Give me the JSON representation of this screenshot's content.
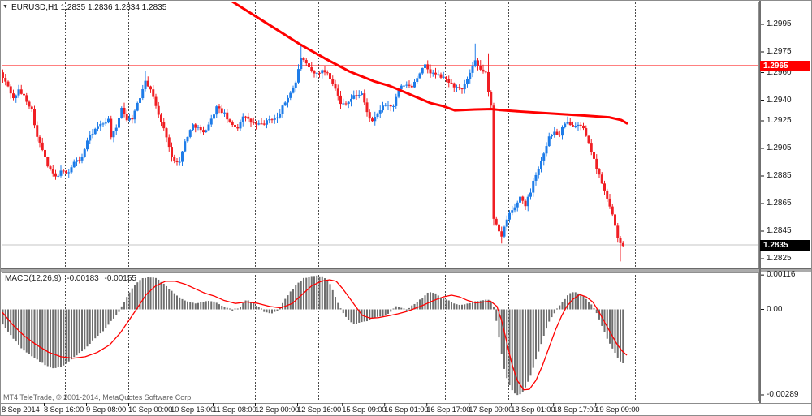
{
  "header": {
    "symbol_label": "EURUSD,H1",
    "quote_label": "1.2835 1.2836 1.2834 1.2835"
  },
  "icons": {
    "dropdown": "▼"
  },
  "footer": {
    "copyright": "MT4 TeleTrade, © 2001-2014, MetaQuotes Software Corp."
  },
  "colors": {
    "bull": "#1e7ce8",
    "bear": "#f01e23",
    "ma_line": "#ff0000",
    "signal_line": "#ff0000",
    "histogram": "#6e6e6e",
    "separator_dots": "#4a4a4a",
    "frame": "#8c8c8c",
    "hline": "#ff0000",
    "current_line": "#c4c4c4",
    "tag_red_bg": "#ff0000",
    "tag_black_bg": "#000000",
    "axis_text": "#1a1a1a"
  },
  "chart_data": {
    "type": "candlestick",
    "symbol": "EURUSD",
    "timeframe": "H1",
    "last_quote": {
      "open": "1.2835",
      "high": "1.2836",
      "low": "1.2834",
      "close": "1.2835"
    },
    "price_axis": {
      "ticks": [
        "1.2995",
        "1.2975",
        "1.2960",
        "1.2940",
        "1.2925",
        "1.2905",
        "1.2885",
        "1.2865",
        "1.2845",
        "1.2825"
      ],
      "level_tag": "1.2965",
      "current_tag": "1.2835",
      "ylim": [
        1.2823,
        1.2997
      ]
    },
    "hline_level": 1.2965,
    "current_price": 1.2835,
    "time_axis": {
      "labels": [
        {
          "label": "8 Sep 2014",
          "bar": 0
        },
        {
          "label": "8 Sep 16:00",
          "bar": 16
        },
        {
          "label": "9 Sep 08:00",
          "bar": 32
        },
        {
          "label": "10 Sep 00:00",
          "bar": 48
        },
        {
          "label": "10 Sep 16:00",
          "bar": 64
        },
        {
          "label": "11 Sep 08:00",
          "bar": 80
        },
        {
          "label": "12 Sep 00:00",
          "bar": 96
        },
        {
          "label": "12 Sep 16:00",
          "bar": 112
        },
        {
          "label": "15 Sep 09:00",
          "bar": 129
        },
        {
          "label": "16 Sep 01:00",
          "bar": 145
        },
        {
          "label": "16 Sep 17:00",
          "bar": 161
        },
        {
          "label": "17 Sep 09:00",
          "bar": 177
        },
        {
          "label": "18 Sep 01:00",
          "bar": 193
        },
        {
          "label": "18 Sep 17:00",
          "bar": 209
        },
        {
          "label": "19 Sep 09:00",
          "bar": 225
        }
      ],
      "separator_bars": [
        24,
        48,
        72,
        96,
        120,
        144,
        168,
        192,
        216,
        240
      ]
    },
    "bars": {
      "count": 236,
      "close_anchors": [
        [
          0,
          1.2956
        ],
        [
          2,
          1.295
        ],
        [
          4,
          1.2941
        ],
        [
          6,
          1.2947
        ],
        [
          8,
          1.2943
        ],
        [
          11,
          1.2933
        ],
        [
          13,
          1.2913
        ],
        [
          15,
          1.2904
        ],
        [
          17,
          1.2892
        ],
        [
          20,
          1.2884
        ],
        [
          22,
          1.2888
        ],
        [
          25,
          1.2888
        ],
        [
          27,
          1.2895
        ],
        [
          30,
          1.2898
        ],
        [
          32,
          1.2911
        ],
        [
          35,
          1.2919
        ],
        [
          37,
          1.2922
        ],
        [
          40,
          1.2926
        ],
        [
          41,
          1.2914
        ],
        [
          43,
          1.2919
        ],
        [
          45,
          1.2935
        ],
        [
          47,
          1.2926
        ],
        [
          49,
          1.2927
        ],
        [
          52,
          1.2942
        ],
        [
          54,
          1.2955
        ],
        [
          57,
          1.2943
        ],
        [
          59,
          1.2929
        ],
        [
          62,
          1.2914
        ],
        [
          64,
          1.2898
        ],
        [
          67,
          1.2895
        ],
        [
          69,
          1.291
        ],
        [
          72,
          1.2922
        ],
        [
          74,
          1.292
        ],
        [
          76,
          1.2916
        ],
        [
          79,
          1.2926
        ],
        [
          81,
          1.2935
        ],
        [
          84,
          1.293
        ],
        [
          86,
          1.2923
        ],
        [
          89,
          1.292
        ],
        [
          91,
          1.2929
        ],
        [
          94,
          1.2924
        ],
        [
          96,
          1.2922
        ],
        [
          99,
          1.2923
        ],
        [
          101,
          1.2926
        ],
        [
          104,
          1.2927
        ],
        [
          106,
          1.2935
        ],
        [
          108,
          1.2942
        ],
        [
          111,
          1.2953
        ],
        [
          113,
          1.2971
        ],
        [
          116,
          1.2963
        ],
        [
          118,
          1.2959
        ],
        [
          121,
          1.2961
        ],
        [
          123,
          1.296
        ],
        [
          126,
          1.2949
        ],
        [
          128,
          1.2937
        ],
        [
          131,
          1.2939
        ],
        [
          133,
          1.2943
        ],
        [
          136,
          1.2945
        ],
        [
          138,
          1.2931
        ],
        [
          140,
          1.2924
        ],
        [
          143,
          1.2933
        ],
        [
          145,
          1.2937
        ],
        [
          148,
          1.2935
        ],
        [
          150,
          1.2948
        ],
        [
          152,
          1.2951
        ],
        [
          155,
          1.295
        ],
        [
          158,
          1.296
        ],
        [
          160,
          1.2965
        ],
        [
          162,
          1.296
        ],
        [
          165,
          1.2958
        ],
        [
          168,
          1.2955
        ],
        [
          171,
          1.295
        ],
        [
          174,
          1.2947
        ],
        [
          176,
          1.2955
        ],
        [
          179,
          1.2968
        ],
        [
          181,
          1.2962
        ],
        [
          183,
          1.296
        ],
        [
          184,
          1.2946
        ],
        [
          185,
          1.2936
        ],
        [
          186,
          1.2854
        ],
        [
          187,
          1.285
        ],
        [
          188,
          1.2845
        ],
        [
          189,
          1.2841
        ],
        [
          190,
          1.2848
        ],
        [
          192,
          1.2858
        ],
        [
          194,
          1.2862
        ],
        [
          196,
          1.287
        ],
        [
          198,
          1.2864
        ],
        [
          200,
          1.2874
        ],
        [
          201,
          1.2882
        ],
        [
          203,
          1.289
        ],
        [
          205,
          1.2902
        ],
        [
          207,
          1.2913
        ],
        [
          209,
          1.2917
        ],
        [
          211,
          1.2914
        ],
        [
          212,
          1.292
        ],
        [
          214,
          1.2924
        ],
        [
          216,
          1.2922
        ],
        [
          218,
          1.2923
        ],
        [
          220,
          1.2919
        ],
        [
          222,
          1.2908
        ],
        [
          224,
          1.2898
        ],
        [
          225,
          1.289
        ],
        [
          227,
          1.288
        ],
        [
          229,
          1.2868
        ],
        [
          231,
          1.2858
        ],
        [
          232,
          1.2848
        ],
        [
          233,
          1.2839
        ],
        [
          235,
          1.2835
        ]
      ],
      "wick_extras": {
        "0": [
          "h",
          1.2962
        ],
        "16": [
          "l",
          1.2877
        ],
        "54": [
          "h",
          1.2961
        ],
        "113": [
          "h",
          1.298
        ],
        "160": [
          "h",
          1.2993
        ],
        "179": [
          "h",
          1.2981
        ],
        "184": [
          "h",
          1.2974
        ],
        "186": [
          "l",
          1.2849
        ],
        "189": [
          "l",
          1.2836
        ],
        "234": [
          "l",
          1.2823
        ]
      }
    },
    "ma_line": [
      [
        283,
        1.30126
      ],
      [
        310,
        1.30026
      ],
      [
        340,
        1.29915
      ],
      [
        370,
        1.29803
      ],
      [
        400,
        1.29703
      ],
      [
        430,
        1.29609
      ],
      [
        460,
        1.29538
      ],
      [
        480,
        1.29503
      ],
      [
        497,
        1.29462
      ],
      [
        513,
        1.29421
      ],
      [
        530,
        1.29379
      ],
      [
        546,
        1.29356
      ],
      [
        560,
        1.29326
      ],
      [
        585,
        1.29332
      ],
      [
        605,
        1.29335
      ],
      [
        615,
        1.29329
      ],
      [
        640,
        1.29318
      ],
      [
        680,
        1.29303
      ],
      [
        720,
        1.29288
      ],
      [
        750,
        1.29276
      ],
      [
        765,
        1.29256
      ],
      [
        772,
        1.29232
      ]
    ],
    "macd": {
      "name": "MACD(12,26,9)",
      "main_value": "-0.00183",
      "signal_value": "-0.00155",
      "axis_ticks": [
        {
          "label": "0.00116",
          "value": 0.00116
        },
        {
          "label": "0.00",
          "value": 0
        },
        {
          "label": "-0.00289",
          "value": -0.00289
        }
      ],
      "hist_anchors": [
        [
          3,
          -0.0005
        ],
        [
          14,
          -0.0009
        ],
        [
          26,
          -0.0013
        ],
        [
          40,
          -0.0016
        ],
        [
          54,
          -0.00185
        ],
        [
          66,
          -0.002
        ],
        [
          78,
          -0.0019
        ],
        [
          92,
          -0.0016
        ],
        [
          104,
          -0.00135
        ],
        [
          116,
          -0.001
        ],
        [
          128,
          -0.0007
        ],
        [
          140,
          -0.0003
        ],
        [
          146,
          -0.0001
        ],
        [
          152,
          0.0002
        ],
        [
          160,
          0.0006
        ],
        [
          168,
          0.0009
        ],
        [
          176,
          0.00105
        ],
        [
          184,
          0.0011
        ],
        [
          192,
          0.00105
        ],
        [
          200,
          0.0009
        ],
        [
          208,
          0.0007
        ],
        [
          216,
          0.0005
        ],
        [
          224,
          0.00035
        ],
        [
          232,
          0.00025
        ],
        [
          240,
          0.0002
        ],
        [
          248,
          0.00025
        ],
        [
          256,
          0.0003
        ],
        [
          264,
          0.00025
        ],
        [
          272,
          0.00015
        ],
        [
          280,
          5e-05
        ],
        [
          288,
          -5e-05
        ],
        [
          296,
          0.0001
        ],
        [
          304,
          0.00035
        ],
        [
          312,
          0.0002
        ],
        [
          320,
          5e-05
        ],
        [
          326,
          -0.0001
        ],
        [
          334,
          -0.00015
        ],
        [
          342,
          -5e-05
        ],
        [
          350,
          0.0003
        ],
        [
          358,
          0.0006
        ],
        [
          366,
          0.00085
        ],
        [
          374,
          0.00105
        ],
        [
          382,
          0.0011
        ],
        [
          390,
          0.00115
        ],
        [
          398,
          0.0011
        ],
        [
          406,
          0.0009
        ],
        [
          412,
          0.0005
        ],
        [
          418,
          0.0001
        ],
        [
          424,
          -0.0002
        ],
        [
          430,
          -0.0004
        ],
        [
          437,
          -0.0005
        ],
        [
          444,
          -0.00045
        ],
        [
          452,
          -0.0004
        ],
        [
          460,
          -0.0003
        ],
        [
          468,
          -0.00025
        ],
        [
          476,
          -0.0002
        ],
        [
          482,
          -5e-05
        ],
        [
          488,
          0.0001
        ],
        [
          494,
          5e-05
        ],
        [
          500,
          -5e-05
        ],
        [
          506,
          0.0001
        ],
        [
          512,
          0.0002
        ],
        [
          520,
          0.0004
        ],
        [
          528,
          0.0006
        ],
        [
          536,
          0.00055
        ],
        [
          544,
          0.0004
        ],
        [
          552,
          0.0003
        ],
        [
          560,
          0.0002
        ],
        [
          568,
          0.00015
        ],
        [
          576,
          0.0002
        ],
        [
          584,
          0.00025
        ],
        [
          592,
          0.0003
        ],
        [
          600,
          0.00035
        ],
        [
          604,
          0.0003
        ],
        [
          608,
          0.0001
        ],
        [
          612,
          -0.0005
        ],
        [
          616,
          -0.0012
        ],
        [
          620,
          -0.0019
        ],
        [
          625,
          -0.0024
        ],
        [
          630,
          -0.0027
        ],
        [
          636,
          -0.0029
        ],
        [
          642,
          -0.00285
        ],
        [
          648,
          -0.0026
        ],
        [
          654,
          -0.0022
        ],
        [
          660,
          -0.0017
        ],
        [
          666,
          -0.0012
        ],
        [
          672,
          -0.0007
        ],
        [
          678,
          -0.0003
        ],
        [
          684,
          -0.0001
        ],
        [
          688,
          0.0001
        ],
        [
          694,
          0.0003
        ],
        [
          700,
          0.0005
        ],
        [
          706,
          0.0006
        ],
        [
          712,
          0.00055
        ],
        [
          718,
          0.00045
        ],
        [
          724,
          0.0003
        ],
        [
          730,
          0.0001
        ],
        [
          736,
          -0.0002
        ],
        [
          742,
          -0.0006
        ],
        [
          748,
          -0.001
        ],
        [
          754,
          -0.0013
        ],
        [
          760,
          -0.0016
        ],
        [
          766,
          -0.00183
        ]
      ],
      "signal_anchors": [
        [
          3,
          -0.0001
        ],
        [
          15,
          -0.0005
        ],
        [
          30,
          -0.0009
        ],
        [
          45,
          -0.0012
        ],
        [
          60,
          -0.00145
        ],
        [
          75,
          -0.0016
        ],
        [
          90,
          -0.00165
        ],
        [
          105,
          -0.0016
        ],
        [
          120,
          -0.00145
        ],
        [
          135,
          -0.0012
        ],
        [
          148,
          -0.0008
        ],
        [
          158,
          -0.0004
        ],
        [
          168,
          0
        ],
        [
          180,
          0.0005
        ],
        [
          192,
          0.0008
        ],
        [
          204,
          0.00095
        ],
        [
          216,
          0.00095
        ],
        [
          228,
          0.00085
        ],
        [
          240,
          0.0007
        ],
        [
          252,
          0.00055
        ],
        [
          264,
          0.00045
        ],
        [
          276,
          0.0003
        ],
        [
          290,
          0.0002
        ],
        [
          304,
          0.00025
        ],
        [
          318,
          0.0002
        ],
        [
          332,
          0.0001
        ],
        [
          346,
          5e-05
        ],
        [
          360,
          0.0002
        ],
        [
          372,
          0.0005
        ],
        [
          384,
          0.0008
        ],
        [
          396,
          0.00095
        ],
        [
          406,
          0.001
        ],
        [
          414,
          0.00095
        ],
        [
          422,
          0.0007
        ],
        [
          430,
          0.0004
        ],
        [
          438,
          0.0001
        ],
        [
          446,
          -0.0002
        ],
        [
          456,
          -0.0003
        ],
        [
          466,
          -0.00028
        ],
        [
          478,
          -0.00022
        ],
        [
          490,
          -0.00015
        ],
        [
          500,
          -8e-05
        ],
        [
          510,
          2e-05
        ],
        [
          522,
          0.00015
        ],
        [
          534,
          0.0003
        ],
        [
          546,
          0.00042
        ],
        [
          556,
          0.00048
        ],
        [
          566,
          0.00042
        ],
        [
          576,
          0.0003
        ],
        [
          586,
          0.00022
        ],
        [
          596,
          0.00025
        ],
        [
          604,
          0.00028
        ],
        [
          612,
          0.0001
        ],
        [
          618,
          -0.0004
        ],
        [
          624,
          -0.0011
        ],
        [
          630,
          -0.0018
        ],
        [
          637,
          -0.0024
        ],
        [
          645,
          -0.00272
        ],
        [
          652,
          -0.0027
        ],
        [
          660,
          -0.0024
        ],
        [
          668,
          -0.0019
        ],
        [
          676,
          -0.0013
        ],
        [
          684,
          -0.0007
        ],
        [
          692,
          -0.0002
        ],
        [
          698,
          0.0001
        ],
        [
          706,
          0.00035
        ],
        [
          714,
          0.0005
        ],
        [
          722,
          0.00042
        ],
        [
          730,
          0.00025
        ],
        [
          738,
          -0.0001
        ],
        [
          746,
          -0.0005
        ],
        [
          754,
          -0.0009
        ],
        [
          760,
          -0.00118
        ],
        [
          766,
          -0.0014
        ],
        [
          772,
          -0.00155
        ]
      ]
    }
  }
}
